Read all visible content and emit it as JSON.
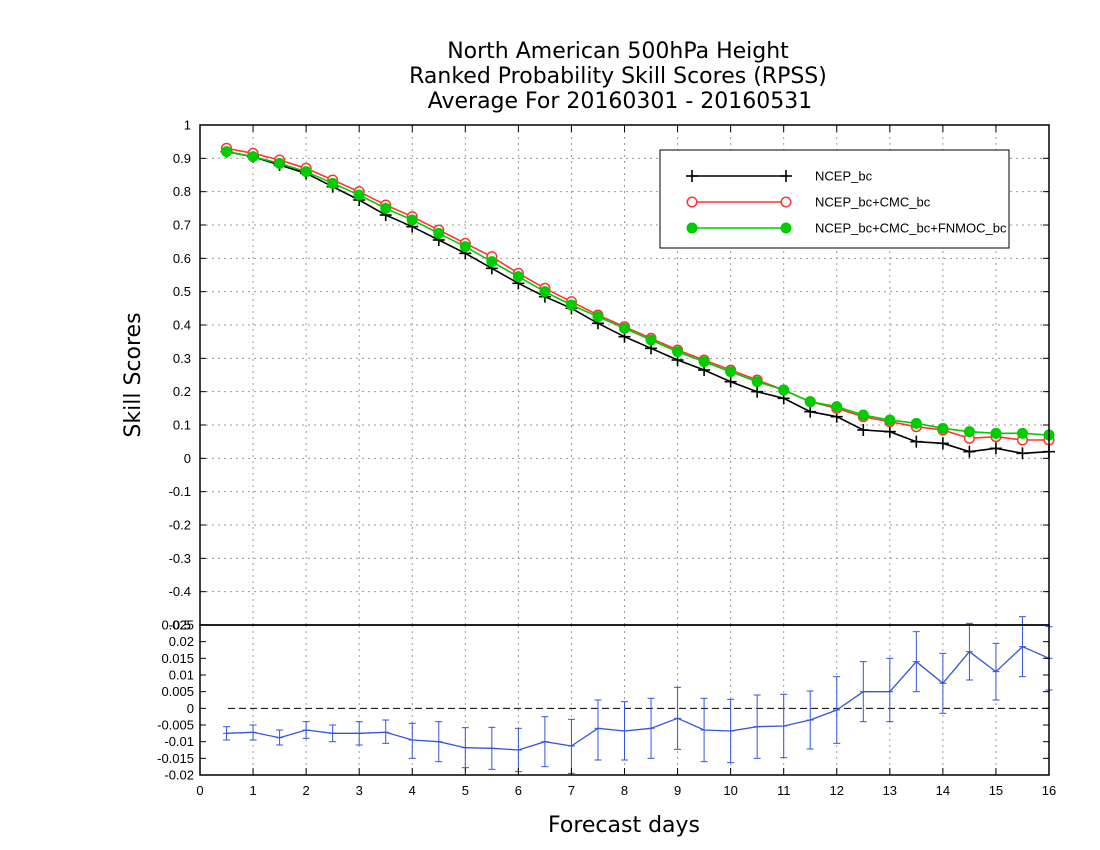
{
  "chart_data": {
    "type": "line",
    "title_lines": [
      "North American 500hPa Height",
      "Ranked Probability Skill Scores (RPSS)",
      "Average For 20160301 - 20160531"
    ],
    "xlabel": "Forecast days",
    "ylabel": "Skill Scores",
    "xlim": [
      0,
      16
    ],
    "x_ticks": [
      "0",
      "1",
      "2",
      "3",
      "4",
      "5",
      "6",
      "7",
      "8",
      "9",
      "10",
      "11",
      "12",
      "13",
      "14",
      "15",
      "16"
    ],
    "grid": true,
    "legend_position": "top-right",
    "top_panel": {
      "ylim": [
        -0.5,
        1
      ],
      "y_ticks": [
        "-0.5",
        "-0.4",
        "-0.3",
        "-0.2",
        "-0.1",
        "0",
        "0.1",
        "0.2",
        "0.3",
        "0.4",
        "0.5",
        "0.6",
        "0.7",
        "0.8",
        "0.9",
        "1"
      ],
      "x": [
        0.5,
        1,
        1.5,
        2,
        2.5,
        3,
        3.5,
        4,
        4.5,
        5,
        5.5,
        6,
        6.5,
        7,
        7.5,
        8,
        8.5,
        9,
        9.5,
        10,
        10.5,
        11,
        11.5,
        12,
        12.5,
        13,
        13.5,
        14,
        14.5,
        15,
        15.5,
        16
      ],
      "series": [
        {
          "name": "NCEP_bc",
          "color": "#000000",
          "marker": "plus",
          "values": [
            0.92,
            0.905,
            0.88,
            0.855,
            0.815,
            0.775,
            0.73,
            0.695,
            0.655,
            0.615,
            0.57,
            0.525,
            0.485,
            0.45,
            0.405,
            0.365,
            0.33,
            0.295,
            0.265,
            0.23,
            0.2,
            0.18,
            0.14,
            0.125,
            0.085,
            0.08,
            0.05,
            0.045,
            0.02,
            0.03,
            0.015,
            0.02
          ]
        },
        {
          "name": "NCEP_bc+CMC_bc",
          "color": "#ff3333",
          "marker": "open-circle",
          "values": [
            0.93,
            0.915,
            0.895,
            0.87,
            0.835,
            0.8,
            0.76,
            0.725,
            0.685,
            0.645,
            0.605,
            0.555,
            0.51,
            0.47,
            0.43,
            0.395,
            0.36,
            0.325,
            0.295,
            0.265,
            0.235,
            0.205,
            0.17,
            0.15,
            0.125,
            0.11,
            0.095,
            0.085,
            0.06,
            0.065,
            0.055,
            0.055
          ]
        },
        {
          "name": "NCEP_bc+CMC_bc+FNMOC_bc",
          "color": "#00cc00",
          "marker": "filled-circle",
          "values": [
            0.92,
            0.905,
            0.885,
            0.86,
            0.825,
            0.79,
            0.75,
            0.715,
            0.675,
            0.635,
            0.59,
            0.545,
            0.5,
            0.46,
            0.425,
            0.39,
            0.355,
            0.32,
            0.29,
            0.26,
            0.23,
            0.205,
            0.17,
            0.155,
            0.13,
            0.115,
            0.105,
            0.09,
            0.08,
            0.075,
            0.075,
            0.07
          ]
        }
      ]
    },
    "bottom_panel": {
      "ylim": [
        -0.02,
        0.025
      ],
      "y_ticks": [
        "-0.02",
        "-0.015",
        "-0.01",
        "-0.005",
        "0",
        "0.005",
        "0.01",
        "0.015",
        "0.02",
        "0.025"
      ],
      "color": "#3355dd",
      "x": [
        0.5,
        1,
        1.5,
        2,
        2.5,
        3,
        3.5,
        4,
        4.5,
        5,
        5.5,
        6,
        6.5,
        7,
        7.5,
        8,
        8.5,
        9,
        9.5,
        10,
        10.5,
        11,
        11.5,
        12,
        12.5,
        13,
        13.5,
        14,
        14.5,
        15,
        15.5,
        16
      ],
      "values": [
        -0.0075,
        -0.0072,
        -0.0088,
        -0.0065,
        -0.0075,
        -0.0075,
        -0.0072,
        -0.0095,
        -0.01,
        -0.0118,
        -0.012,
        -0.0125,
        -0.01,
        -0.0113,
        -0.006,
        -0.0068,
        -0.006,
        -0.003,
        -0.0065,
        -0.0068,
        -0.0055,
        -0.0053,
        -0.0035,
        -0.0005,
        0.005,
        0.005,
        0.014,
        0.0075,
        0.017,
        0.011,
        0.0185,
        0.015
      ],
      "err_low": [
        -0.0095,
        -0.0095,
        -0.011,
        -0.009,
        -0.01,
        -0.011,
        -0.0105,
        -0.015,
        -0.016,
        -0.0178,
        -0.0183,
        -0.019,
        -0.0175,
        -0.0195,
        -0.0155,
        -0.0155,
        -0.015,
        -0.0123,
        -0.016,
        -0.0163,
        -0.015,
        -0.0148,
        -0.0122,
        -0.0105,
        -0.004,
        -0.004,
        0.005,
        -0.0015,
        0.0085,
        0.0025,
        0.0095,
        0.0055
      ],
      "err_high": [
        -0.0055,
        -0.005,
        -0.0065,
        -0.004,
        -0.005,
        -0.004,
        -0.0035,
        -0.0045,
        -0.004,
        -0.0058,
        -0.0057,
        -0.006,
        -0.0025,
        -0.0033,
        0.0025,
        0.002,
        0.003,
        0.0063,
        0.003,
        0.0027,
        0.004,
        0.0042,
        0.0052,
        0.0095,
        0.014,
        0.015,
        0.023,
        0.0165,
        0.0255,
        0.0195,
        0.0275,
        0.0245
      ]
    }
  }
}
